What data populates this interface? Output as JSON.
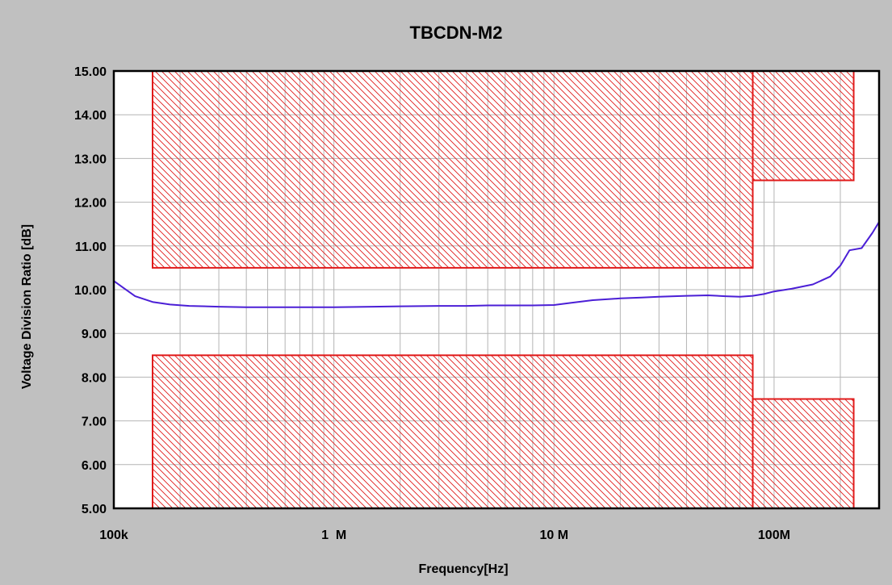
{
  "colors": {
    "background": "#c0c0c0",
    "plot_background": "#ffffff",
    "grid": "#b4b4b4",
    "limit_box": "#e01a1a",
    "trace": "#4b1fd6",
    "text": "#000000"
  },
  "chart_data": {
    "type": "line",
    "title": "TBCDN-M2",
    "xlabel": "Frequency[Hz]",
    "ylabel": "Voltage Division Ratio [dB]",
    "x_scale": "log",
    "xlim": [
      100000,
      300000000
    ],
    "ylim": [
      5,
      15
    ],
    "grid": true,
    "x_tick_labels": [
      {
        "value": 100000,
        "label": "100k"
      },
      {
        "value": 1000000,
        "label": "1  M"
      },
      {
        "value": 10000000,
        "label": "10 M"
      },
      {
        "value": 100000000,
        "label": "100M"
      }
    ],
    "y_tick_labels": [
      {
        "value": 15,
        "label": "15.00"
      },
      {
        "value": 14,
        "label": "14.00"
      },
      {
        "value": 13,
        "label": "13.00"
      },
      {
        "value": 12,
        "label": "12.00"
      },
      {
        "value": 11,
        "label": "11.00"
      },
      {
        "value": 10,
        "label": "10.00"
      },
      {
        "value": 9,
        "label": "9.00"
      },
      {
        "value": 8,
        "label": "8.00"
      },
      {
        "value": 7,
        "label": "7.00"
      },
      {
        "value": 6,
        "label": "6.00"
      },
      {
        "value": 5,
        "label": "5.00"
      }
    ],
    "limit_regions": [
      {
        "x": [
          150000,
          80000000
        ],
        "y": [
          10.5,
          15
        ]
      },
      {
        "x": [
          80000000,
          230000000
        ],
        "y": [
          12.5,
          15
        ]
      },
      {
        "x": [
          150000,
          80000000
        ],
        "y": [
          5,
          8.5
        ]
      },
      {
        "x": [
          80000000,
          230000000
        ],
        "y": [
          5,
          7.5
        ]
      }
    ],
    "series": [
      {
        "x": [
          100000,
          110000,
          125000,
          150000,
          180000,
          220000,
          300000,
          400000,
          500000,
          600000,
          800000,
          1000000,
          1500000,
          2000000,
          3000000,
          4000000,
          5000000,
          6000000,
          8000000,
          10000000,
          12000000,
          15000000,
          20000000,
          25000000,
          30000000,
          40000000,
          50000000,
          60000000,
          70000000,
          80000000,
          90000000,
          100000000,
          120000000,
          150000000,
          180000000,
          200000000,
          220000000,
          250000000,
          280000000,
          300000000
        ],
        "y": [
          10.2,
          10.05,
          9.85,
          9.72,
          9.66,
          9.63,
          9.61,
          9.6,
          9.6,
          9.6,
          9.6,
          9.6,
          9.61,
          9.62,
          9.63,
          9.63,
          9.64,
          9.64,
          9.64,
          9.65,
          9.7,
          9.76,
          9.8,
          9.82,
          9.84,
          9.86,
          9.87,
          9.85,
          9.84,
          9.86,
          9.9,
          9.96,
          10.02,
          10.12,
          10.3,
          10.55,
          10.9,
          10.95,
          11.3,
          11.55
        ]
      }
    ]
  }
}
